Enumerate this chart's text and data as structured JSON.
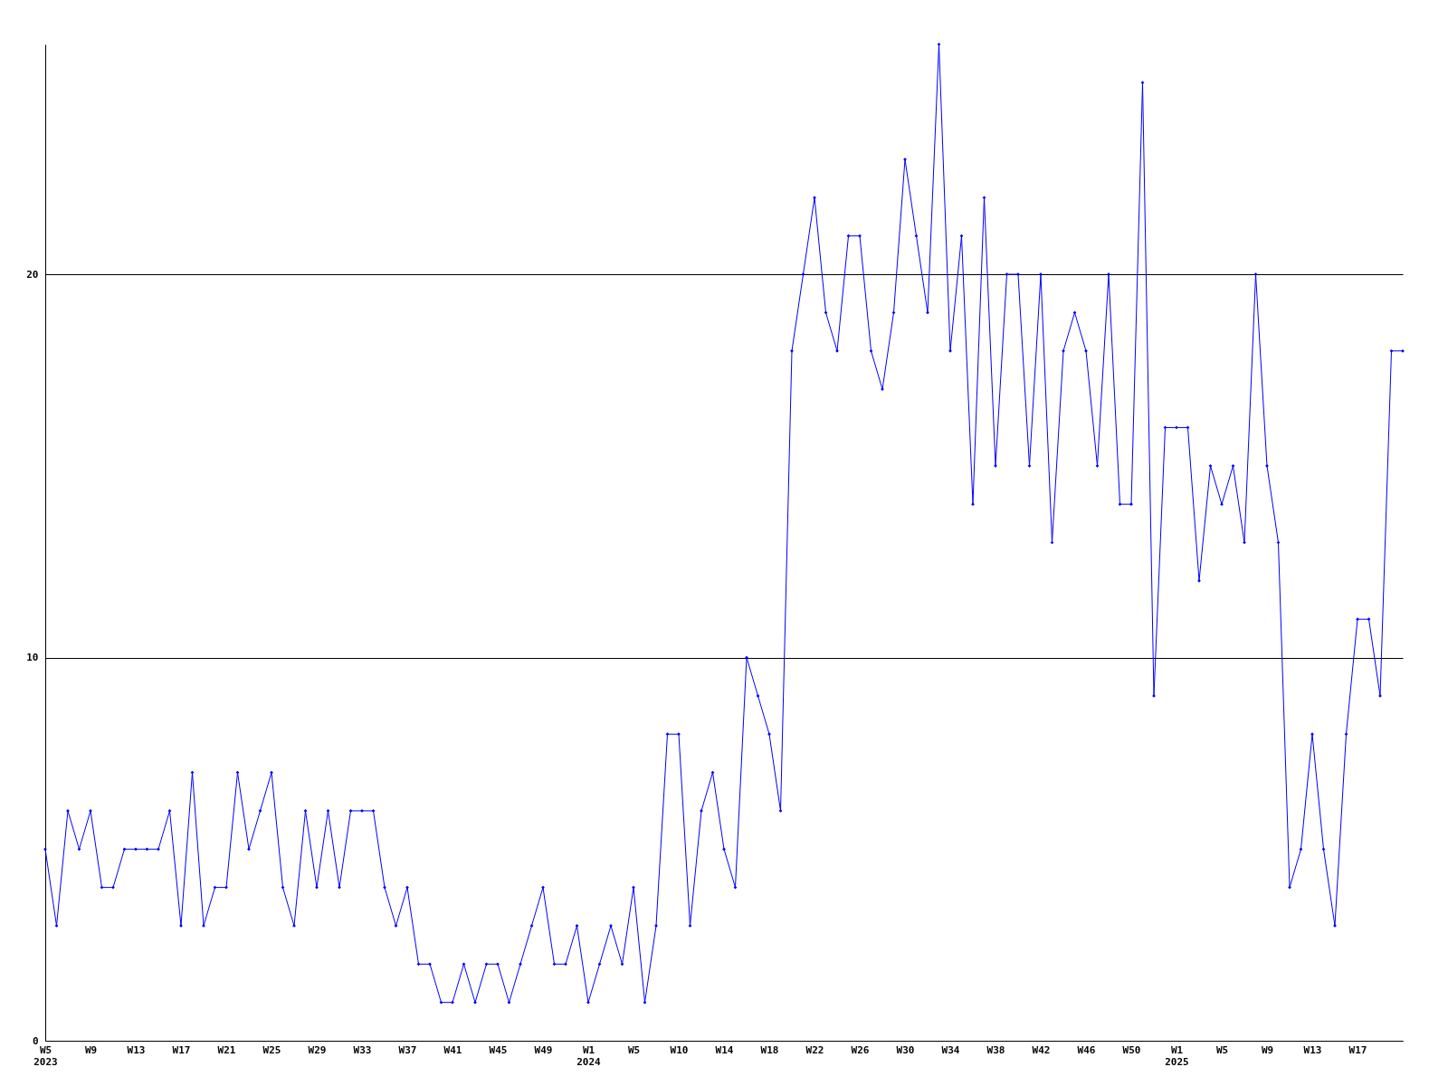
{
  "chart_data": {
    "type": "line",
    "categories": [
      "W5\n2023",
      null,
      null,
      null,
      "W9",
      null,
      null,
      null,
      "W13",
      null,
      null,
      null,
      "W17",
      null,
      null,
      null,
      "W21",
      null,
      null,
      null,
      "W25",
      null,
      null,
      null,
      "W29",
      null,
      null,
      null,
      "W33",
      null,
      null,
      null,
      "W37",
      null,
      null,
      null,
      "W41",
      null,
      null,
      null,
      "W45",
      null,
      null,
      null,
      "W49",
      null,
      null,
      null,
      "W1\n2024",
      null,
      null,
      null,
      "W5",
      null,
      null,
      null,
      "W10",
      null,
      null,
      null,
      "W14",
      null,
      null,
      null,
      "W18",
      null,
      null,
      null,
      "W22",
      null,
      null,
      null,
      "W26",
      null,
      null,
      null,
      "W30",
      null,
      null,
      null,
      "W34",
      null,
      null,
      null,
      "W38",
      null,
      null,
      null,
      "W42",
      null,
      null,
      null,
      "W46",
      null,
      null,
      null,
      "W50",
      null,
      null,
      null,
      "W1\n2025",
      null,
      null,
      null,
      "W5",
      null,
      null,
      null,
      "W9",
      null,
      null,
      null,
      "W13",
      null,
      null,
      null,
      "W17",
      null,
      null,
      null,
      null
    ],
    "series": [
      {
        "color": "#0000ff",
        "values": [
          5,
          3,
          6,
          5,
          6,
          4,
          4,
          5,
          5,
          5,
          5,
          6,
          3,
          7,
          3,
          4,
          4,
          7,
          5,
          6,
          7,
          4,
          3,
          6,
          4,
          6,
          4,
          6,
          6,
          6,
          4,
          3,
          4,
          2,
          2,
          1,
          1,
          2,
          1,
          2,
          2,
          1,
          2,
          3,
          4,
          2,
          2,
          3,
          1,
          2,
          3,
          2,
          4,
          1,
          3,
          8,
          8,
          3,
          6,
          7,
          5,
          4,
          10,
          9,
          8,
          6,
          18,
          20,
          22,
          19,
          18,
          21,
          21,
          18,
          17,
          19,
          23,
          21,
          19,
          26,
          18,
          21,
          14,
          22,
          15,
          20,
          20,
          15,
          20,
          13,
          18,
          19,
          18,
          15,
          20,
          14,
          14,
          25,
          9,
          16,
          16,
          16,
          12,
          15,
          14,
          15,
          13,
          20,
          15,
          13,
          4,
          5,
          8,
          5,
          3,
          8,
          11,
          11,
          9,
          18,
          18
        ]
      }
    ],
    "ylim": [
      0,
      26
    ],
    "yticks": [
      0,
      10,
      20
    ],
    "grid": "y",
    "marker": "diamond",
    "line_style": "solid"
  }
}
